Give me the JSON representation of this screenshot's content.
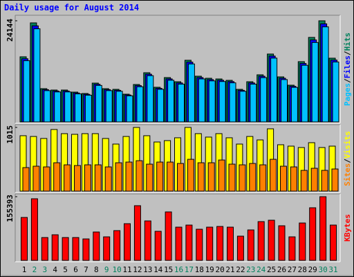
{
  "title": "Daily usage for August 2014",
  "chart_data": [
    {
      "type": "bar",
      "ylim": [
        0,
        24144
      ],
      "yticks": [
        24144
      ],
      "legend_separator": "/",
      "series": [
        {
          "name": "Hits",
          "color": "#00805C",
          "values": [
            15545,
            23648,
            7938,
            7607,
            7607,
            7111,
            6780,
            9261,
            7938,
            7773,
            6615,
            8930,
            11741,
            8268,
            10584,
            9592,
            14718,
            10914,
            10418,
            10253,
            9922,
            7773,
            9592,
            11245,
            16206,
            10749,
            8765,
            14387,
            20175,
            24144,
            15214
          ]
        },
        {
          "name": "Files",
          "color": "#0000FF",
          "values": [
            15079,
            22939,
            7700,
            7379,
            7379,
            6898,
            6577,
            8983,
            7700,
            7540,
            6417,
            8662,
            11389,
            8020,
            10266,
            9304,
            14276,
            10587,
            10105,
            9945,
            9624,
            7540,
            9304,
            10908,
            15720,
            10427,
            8502,
            13955,
            19570,
            23420,
            14758
          ]
        },
        {
          "name": "Pages",
          "color": "#00C0FF",
          "values": [
            14612,
            22229,
            7462,
            7151,
            7151,
            6684,
            6373,
            8705,
            7462,
            7307,
            6218,
            8394,
            11037,
            7772,
            9949,
            9016,
            13835,
            10259,
            9793,
            9638,
            9327,
            7307,
            9016,
            10570,
            15234,
            10104,
            8239,
            13524,
            18965,
            22695,
            14301
          ]
        }
      ]
    },
    {
      "type": "bar",
      "ylim": [
        0,
        1015
      ],
      "yticks": [
        1015
      ],
      "legend_separator": "/",
      "series": [
        {
          "name": "Visits",
          "color": "#FFFF00",
          "values": [
            883,
            871,
            839,
            982,
            916,
            905,
            916,
            916,
            839,
            750,
            871,
            1015,
            883,
            783,
            805,
            850,
            1015,
            916,
            861,
            916,
            850,
            750,
            871,
            816,
            993,
            739,
            717,
            695,
            772,
            695,
            717
          ]
        },
        {
          "name": "Sites",
          "color": "#FF8000",
          "values": [
            375,
            397,
            386,
            452,
            419,
            408,
            419,
            419,
            386,
            452,
            463,
            485,
            430,
            463,
            463,
            441,
            507,
            452,
            452,
            496,
            430,
            419,
            441,
            419,
            507,
            397,
            386,
            331,
            364,
            331,
            353
          ]
        }
      ]
    },
    {
      "type": "bar",
      "ylim": [
        0,
        155393
      ],
      "yticks": [
        155393
      ],
      "categories": [
        "1",
        "2",
        "3",
        "4",
        "5",
        "6",
        "7",
        "8",
        "9",
        "10",
        "11",
        "12",
        "13",
        "14",
        "15",
        "16",
        "17",
        "18",
        "19",
        "20",
        "21",
        "22",
        "23",
        "24",
        "25",
        "26",
        "27",
        "28",
        "29",
        "30",
        "31"
      ],
      "category_colors": [
        "#000000",
        "#00805C",
        "#00805C",
        "#000000",
        "#000000",
        "#000000",
        "#000000",
        "#000000",
        "#00805C",
        "#00805C",
        "#000000",
        "#000000",
        "#000000",
        "#000000",
        "#000000",
        "#00805C",
        "#00805C",
        "#000000",
        "#000000",
        "#000000",
        "#000000",
        "#000000",
        "#00805C",
        "#00805C",
        "#000000",
        "#000000",
        "#000000",
        "#000000",
        "#000000",
        "#00805C",
        "#00805C"
      ],
      "series": [
        {
          "name": "KBytes",
          "color": "#FF0000",
          "values": [
            104717,
            150325,
            55737,
            62493,
            55737,
            55737,
            52359,
            69249,
            57426,
            72627,
            89517,
            133431,
            96272,
            70938,
            118230,
            81072,
            86139,
            76005,
            81072,
            82761,
            81072,
            59115,
            74316,
            94583,
            97961,
            84449,
            57426,
            91205,
            128364,
            155393,
            86139
          ]
        }
      ]
    }
  ]
}
